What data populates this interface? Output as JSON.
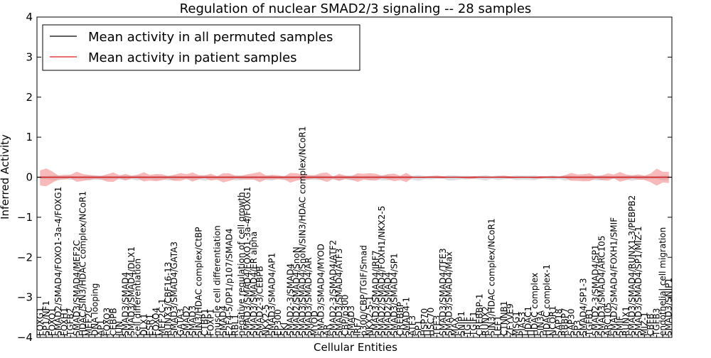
{
  "chart_data": {
    "type": "line",
    "title": "Regulation of nuclear SMAD2/3 signaling -- 28 samples",
    "xlabel": "Cellular Entities",
    "ylabel": "Inferred Activity",
    "ylim": [
      -4,
      4
    ],
    "yticks": [
      -4,
      -3,
      -2,
      -1,
      0,
      1,
      2,
      3,
      4
    ],
    "ytick_labels": [
      "−4",
      "−3",
      "−2",
      "−1",
      "0",
      "1",
      "2",
      "3",
      "4"
    ],
    "grid": false,
    "legend_position": "top-left",
    "colors": {
      "permuted": "#000000",
      "patient": "#e41a1c",
      "patient_band": "#f08080",
      "permuted_band": "#c0c0c8"
    },
    "series": [
      {
        "name": "Mean activity in all permuted samples",
        "color": "#000000",
        "mean": 0.0
      },
      {
        "name": "Mean activity in patient samples",
        "color": "#e41a1c",
        "mean": 0.0
      }
    ],
    "categories": [
      "FOXG1",
      "SP1/NF1",
      "FOXO1",
      "SMAD2/SMAD4/FOXO1-3a-4/FOXG1",
      "FOXH1",
      "TGFB2",
      "SMAD3/SMAD4/MEF2C",
      "HDAC/SIN3/HDAC complex/NCoR1",
      "MEF2C",
      "DNA looping",
      "AP1",
      "FOXO3",
      "CEBPB",
      "JUN",
      "SMAD3/SMAD4",
      "SMAD3/SMAD4/DLX1",
      "cell differentiation",
      "DLX1",
      "ESR1",
      "FOXO4",
      "MEF2C-1",
      "RUNX3/CBF16-13",
      "SMAD3/SMAD4/GATA3",
      "GATA3",
      "SMAD2",
      "SMAD3",
      "SIN3/HDAC complex/CtBP",
      "CTBP1",
      "FOXP1",
      "muscle cell differentiation",
      "SMAD4",
      "E2F4-5/DP1/p107/SMAD4",
      "RBL1",
      "negative regulation of cell growth",
      "SMAD3/SMAD4/FOXO1-3a-4/FOXG1",
      "SMAD3/SMAD4/ER alpha",
      "SMAD2-3/CEBPB",
      "NKX2-5",
      "SMAD3/SMAD4/AP1",
      "EP300",
      "SKI",
      "SMAD2-3/SMAD4",
      "SMAD2/SMAD4/SnoN",
      "SMAD3/SMAD4/SnoN/SIN3/HDAC complex/NCoR1",
      "SMAD3/SMAD4/AR",
      "MYOD",
      "SMAD3/SMAD4/MYOD",
      "AR",
      "SMAD2-3/SMAD4/ATF2",
      "SMAD3/SMAD4/ATF3",
      "CBP/p300",
      "SMAD3",
      "IRF7",
      "p300/CBP/TGIF/Smad",
      "NKX2-5-1",
      "SMAD3/SMAD4/IRF7",
      "SMAD2/SMAD4/FOXH1/NKX2-5",
      "SMAD2/SMAD4",
      "SMAD3/SMAD4/SP1",
      "CREBBP",
      "SMAD4-1",
      "ATF3",
      "SP1",
      "HSP70",
      "HSC70",
      "TFE3",
      "SMAD3/SMAD4/TFE3",
      "SMAD3/SMAD4/Max",
      "MAX",
      "SNIP1",
      "TGIF",
      "TGIF1",
      "CREBBP-1",
      "RUNX2",
      "SIN3/HDAC complex/NCoR1",
      "LEF1",
      "CTNNB1",
      "ZFYVE9",
      "MSG1",
      "PIAS3",
      "HDAC1",
      "HDAC complex",
      "SIN3A",
      "HDAC complex-1",
      "NCOR1",
      "SAP18",
      "RBBP7",
      "SAP30",
      "SP3",
      "SMAD4/SP1-3",
      "TGFB1",
      "SMAD2-3/SMAD4/SP1",
      "SMAD3/SMAD4/ARC105",
      "ARC105",
      "SMAD2/SMAD4/FOXH1/SMIF",
      "SMIF",
      "RUNX1",
      "SMAD3/SMAD4/RUNX1-3/PEBPB2",
      "SMAD3/SMAD4/SP1/MIZ-1",
      "MIZ-1",
      "CBFB",
      "TGFB3",
      "endothelial cell migration",
      "SMAD3/SNIP1"
    ]
  }
}
